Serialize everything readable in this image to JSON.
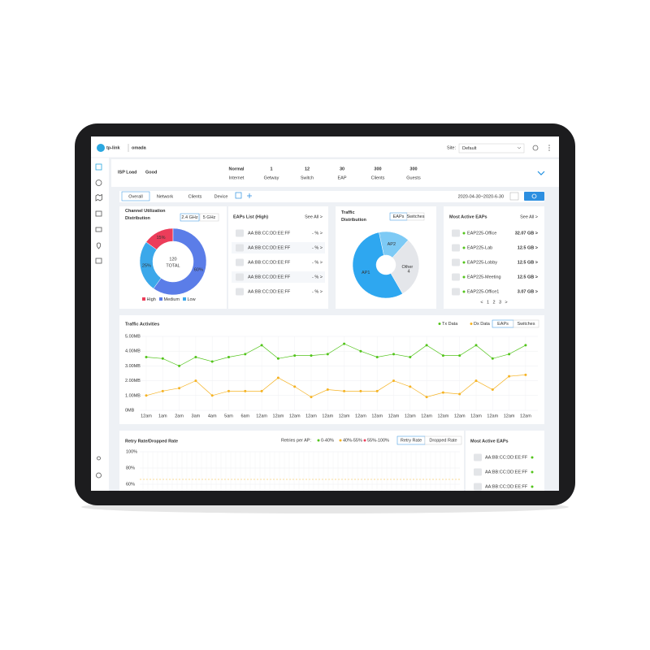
{
  "header": {
    "brand": "tp-link",
    "product": "omada",
    "site_label": "Site:",
    "site_value": "Default"
  },
  "isp": {
    "label": "ISP Load",
    "status": "Good",
    "stats": [
      {
        "value": "Normal",
        "label": "Internet"
      },
      {
        "value": 1,
        "label": "Getway"
      },
      {
        "value": 12,
        "label": "Switch"
      },
      {
        "value": 30,
        "label": "EAP"
      },
      {
        "value": 300,
        "label": "Clients"
      },
      {
        "value": 300,
        "label": "Guests"
      }
    ]
  },
  "tabs": {
    "items": [
      "Overall",
      "Network",
      "Clients",
      "Device"
    ],
    "date_range": "2020-04-30~2020-6-30"
  },
  "channel_utilization": {
    "type": "donut",
    "title": "Channel Utilization Distribution",
    "bands": [
      "2.4 GHz",
      "5 GHz"
    ],
    "center_value": 120,
    "center_label": "TOTAL",
    "labels": [
      "High",
      "Medium",
      "Low"
    ],
    "values": [
      15,
      60,
      25
    ],
    "value_labels": [
      "15%",
      "60%",
      "25%"
    ],
    "colors": [
      "#ec3d5a",
      "#5b7de8",
      "#3ba8ea"
    ]
  },
  "eaps_list": {
    "title": "EAPs List (High)",
    "see_all": "See All >",
    "rows": [
      {
        "mac": "AA:BB:CC:DD:EE:FF",
        "value": "- % >"
      },
      {
        "mac": "AA:BB:CC:DD:EE:FF",
        "value": "- % >"
      },
      {
        "mac": "AA:BB:CC:DD:EE:FF",
        "value": "- % >"
      },
      {
        "mac": "AA:BB:CC:DD:EE:FF",
        "value": "- % >"
      },
      {
        "mac": "AA:BB:CC:DD:EE:FF",
        "value": "- % >"
      }
    ]
  },
  "traffic_distribution": {
    "type": "donut",
    "title": "Traffic Distribution",
    "tabs": [
      "EAPs",
      "Switches"
    ],
    "labels": [
      "AP1",
      "AP2",
      "Other"
    ],
    "values": [
      55,
      15,
      30
    ],
    "other_note": "4",
    "colors": [
      "#2ea7f0",
      "#7dcaf5",
      "#e4e6ea"
    ]
  },
  "most_active": {
    "title": "Most Active EAPs",
    "see_all": "See All >",
    "rows": [
      {
        "name": "EAP225-Office",
        "value": "32.07 GB >"
      },
      {
        "name": "EAP225-Lab",
        "value": "12.5 GB >"
      },
      {
        "name": "EAP225-Lobby",
        "value": "12.5 GB >"
      },
      {
        "name": "EAP225-Meeting",
        "value": "12.5 GB >"
      },
      {
        "name": "EAP225-Office1",
        "value": "3.07 GB >"
      }
    ],
    "pagination": [
      "<",
      "1",
      "2",
      "3",
      ">"
    ]
  },
  "traffic_activities": {
    "type": "line",
    "title": "Traffic Activities",
    "tabs": [
      "EAPs",
      "Switches"
    ],
    "grid": true,
    "categories": [
      "12am",
      "1am",
      "2am",
      "3am",
      "4am",
      "5am",
      "6am",
      "12am",
      "12am",
      "12am",
      "12am",
      "12am",
      "12am",
      "12am",
      "12am",
      "12am",
      "12am",
      "12am",
      "12am",
      "12am",
      "12am",
      "12am",
      "12am",
      "12am"
    ],
    "ylim": [
      0,
      5
    ],
    "yticks": [
      {
        "value": 0,
        "label": "0MB"
      },
      {
        "value": 1,
        "label": "1.00MB"
      },
      {
        "value": 2,
        "label": "2.00MB"
      },
      {
        "value": 3,
        "label": "3.00MB"
      },
      {
        "value": 4,
        "label": "4.00MB"
      },
      {
        "value": 5,
        "label": "5.00MB"
      }
    ],
    "series": [
      {
        "name": "Tx Data",
        "color": "#52c41a",
        "values": [
          3.6,
          3.5,
          3.0,
          3.6,
          3.3,
          3.6,
          3.8,
          4.4,
          3.5,
          3.7,
          3.7,
          3.8,
          4.5,
          4.0,
          3.6,
          3.8,
          3.6,
          4.4,
          3.7,
          3.7,
          4.4,
          3.5,
          3.8,
          4.4
        ]
      },
      {
        "name": "Dx Data",
        "color": "#f5b324",
        "values": [
          1.0,
          1.3,
          1.5,
          2.0,
          1.0,
          1.3,
          1.3,
          1.3,
          2.2,
          1.6,
          0.9,
          1.4,
          1.3,
          1.3,
          1.3,
          2.0,
          1.6,
          0.9,
          1.2,
          1.1,
          2.0,
          1.4,
          2.3,
          2.4
        ]
      }
    ]
  },
  "retry_rate": {
    "title": "Retry Rate/Dropped Rate",
    "retries_label": "Retries per AP:",
    "legend": [
      {
        "name": "0-40%",
        "color": "#52c41a"
      },
      {
        "name": "40%-55%",
        "color": "#f5b324"
      },
      {
        "name": "55%-100%",
        "color": "#ec3d5a"
      }
    ],
    "tabs": [
      "Retry Rate",
      "Dropped Rate"
    ],
    "yticks": [
      {
        "value": 100,
        "label": "100%"
      },
      {
        "value": 80,
        "label": "80%"
      },
      {
        "value": 60,
        "label": "60%"
      }
    ]
  },
  "most_active_bottom": {
    "title": "Most Active EAPs",
    "rows": [
      "AA:BB:CC:DD:EE:FF",
      "AA:BB:CC:DD:EE:FF",
      "AA:BB:CC:DD:EE:FF"
    ]
  }
}
